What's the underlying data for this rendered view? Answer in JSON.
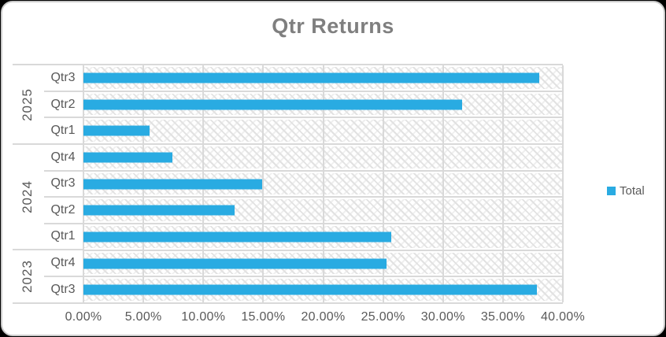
{
  "chart_data": {
    "type": "bar",
    "orientation": "horizontal",
    "title": "Qtr Returns",
    "grid": true,
    "legend_position": "right",
    "series": [
      {
        "name": "Total",
        "color": "#29ABE2"
      }
    ],
    "x_axis": {
      "min": 0,
      "max": 40,
      "unit": "%",
      "tick_labels": [
        "0.00%",
        "5.00%",
        "10.00%",
        "15.00%",
        "20.00%",
        "25.00%",
        "30.00%",
        "35.00%",
        "40.00%"
      ]
    },
    "rows": [
      {
        "year": "2025",
        "quarter": "Qtr3",
        "value_pct": 38.0
      },
      {
        "year": "2025",
        "quarter": "Qtr2",
        "value_pct": 31.6
      },
      {
        "year": "2025",
        "quarter": "Qtr1",
        "value_pct": 5.5
      },
      {
        "year": "2024",
        "quarter": "Qtr4",
        "value_pct": 7.4
      },
      {
        "year": "2024",
        "quarter": "Qtr3",
        "value_pct": 14.9
      },
      {
        "year": "2024",
        "quarter": "Qtr2",
        "value_pct": 12.6
      },
      {
        "year": "2024",
        "quarter": "Qtr1",
        "value_pct": 25.7
      },
      {
        "year": "2023",
        "quarter": "Qtr4",
        "value_pct": 25.3
      },
      {
        "year": "2023",
        "quarter": "Qtr3",
        "value_pct": 37.8
      }
    ]
  },
  "colors": {
    "bar": "#29ABE2",
    "gridline": "#D9D9D9",
    "axis_text": "#595959",
    "title_text": "#7F7F7F"
  }
}
